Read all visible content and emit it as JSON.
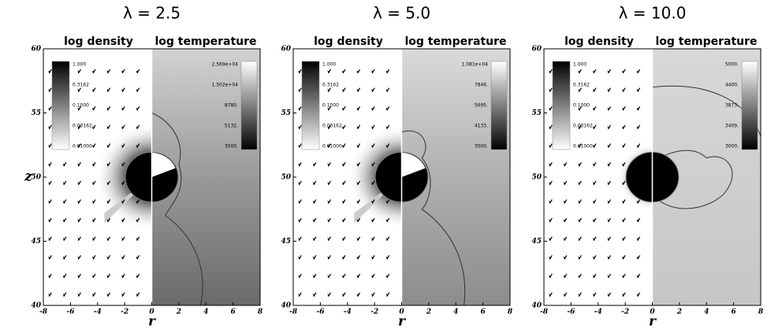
{
  "panels": [
    {
      "title": "λ = 2.5",
      "left_label": "log density",
      "right_label": "log temperature",
      "y_axis_label": "z",
      "x_axis_label": "r",
      "xlim": [
        -8,
        8
      ],
      "xticks": [
        -8,
        -6,
        -4,
        -2,
        0,
        2,
        4,
        6,
        8
      ],
      "ylim": [
        40,
        60
      ],
      "yticks": [
        40,
        45,
        50,
        55,
        60
      ],
      "density_colorbar": [
        "1.000",
        "0.3162",
        "0.1000",
        "0.03162",
        "0.01000"
      ],
      "temperature_colorbar": [
        "2.569e+04",
        "1.502e+04",
        "8780.",
        "5132.",
        "3000."
      ]
    },
    {
      "title": "λ = 5.0",
      "left_label": "log density",
      "right_label": "log temperature",
      "x_axis_label": "r",
      "xlim": [
        -8,
        8
      ],
      "xticks": [
        -8,
        -6,
        -4,
        -2,
        0,
        2,
        4,
        6,
        8
      ],
      "ylim": [
        40,
        60
      ],
      "yticks": [
        40,
        45,
        50,
        55,
        60
      ],
      "density_colorbar": [
        "1.000",
        "0.3162",
        "0.1000",
        "0.03162",
        "0.01000"
      ],
      "temperature_colorbar": [
        "1.081e+04",
        "7846.",
        "5695.",
        "4133.",
        "3000."
      ]
    },
    {
      "title": "λ = 10.0",
      "left_label": "log density",
      "right_label": "log temperature",
      "x_axis_label": "r",
      "xlim": [
        -8,
        8
      ],
      "xticks": [
        -8,
        -6,
        -4,
        -2,
        0,
        2,
        4,
        6,
        8
      ],
      "ylim": [
        40,
        60
      ],
      "yticks": [
        40,
        45,
        50,
        55,
        60
      ],
      "density_colorbar": [
        "1.000",
        "0.3162",
        "0.1000",
        "0.03162",
        "0.01000"
      ],
      "temperature_colorbar": [
        "5000.",
        "4400.",
        "3873.",
        "3409.",
        "3000."
      ]
    }
  ]
}
